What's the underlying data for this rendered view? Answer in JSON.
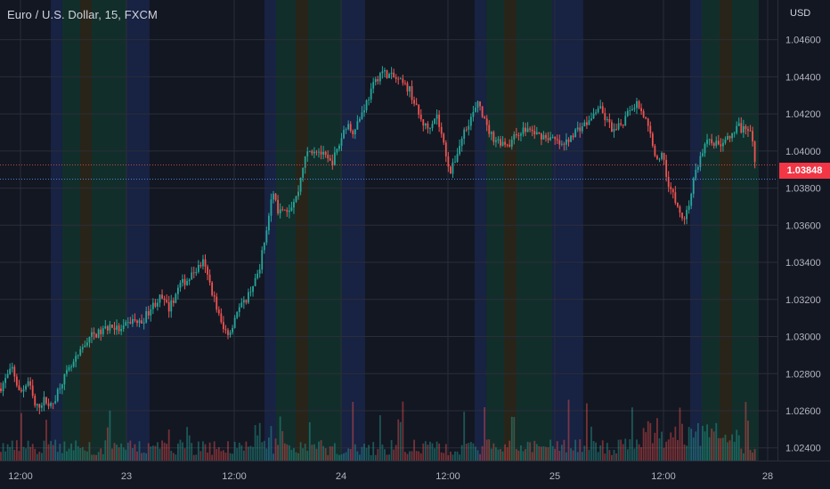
{
  "header": {
    "title": "Euro / U.S. Dollar, 15, FXCM",
    "currency": "USD"
  },
  "last_price_label": "1.03848",
  "colors": {
    "background": "#131722",
    "up": "#26a69a",
    "down": "#ef5350",
    "session_blue": "#1a2548",
    "session_green": "#13332d",
    "session_orange": "#2e2718",
    "price_tag": "#f23645"
  },
  "chart_data": {
    "type": "candlestick",
    "symbol": "Euro / U.S. Dollar",
    "interval": "15",
    "source": "FXCM",
    "y_tick_labels": [
      "1.02400",
      "1.02600",
      "1.02800",
      "1.03000",
      "1.03200",
      "1.03400",
      "1.03600",
      "1.03800",
      "1.04000",
      "1.04200",
      "1.04400",
      "1.04600"
    ],
    "ylim": [
      1.0237,
      1.0467
    ],
    "x_tick_labels": [
      "12:00",
      "23",
      "12:00",
      "24",
      "12:00",
      "25",
      "12:00",
      "28"
    ],
    "last_price": 1.03848,
    "reference_price": 1.03925,
    "grid": true,
    "close_path": [
      [
        0,
        1.0272
      ],
      [
        14,
        1.0283
      ],
      [
        22,
        1.0269
      ],
      [
        32,
        1.0276
      ],
      [
        40,
        1.0261
      ],
      [
        50,
        1.0266
      ],
      [
        58,
        1.0262
      ],
      [
        68,
        1.0275
      ],
      [
        78,
        1.0282
      ],
      [
        90,
        1.0291
      ],
      [
        100,
        1.03
      ],
      [
        112,
        1.0302
      ],
      [
        124,
        1.0306
      ],
      [
        136,
        1.0303
      ],
      [
        148,
        1.0309
      ],
      [
        158,
        1.0307
      ],
      [
        170,
        1.0316
      ],
      [
        180,
        1.0321
      ],
      [
        190,
        1.0315
      ],
      [
        202,
        1.0328
      ],
      [
        212,
        1.0331
      ],
      [
        220,
        1.0336
      ],
      [
        228,
        1.034
      ],
      [
        234,
        1.0331
      ],
      [
        242,
        1.0318
      ],
      [
        250,
        1.0304
      ],
      [
        258,
        1.0302
      ],
      [
        266,
        1.0314
      ],
      [
        274,
        1.0318
      ],
      [
        282,
        1.0326
      ],
      [
        290,
        1.0334
      ],
      [
        298,
        1.0354
      ],
      [
        306,
        1.0378
      ],
      [
        312,
        1.0368
      ],
      [
        318,
        1.0366
      ],
      [
        326,
        1.037
      ],
      [
        334,
        1.0376
      ],
      [
        340,
        1.0392
      ],
      [
        346,
        1.04
      ],
      [
        356,
        1.0401
      ],
      [
        364,
        1.0397
      ],
      [
        372,
        1.0393
      ],
      [
        380,
        1.0402
      ],
      [
        388,
        1.0414
      ],
      [
        396,
        1.0411
      ],
      [
        404,
        1.0418
      ],
      [
        412,
        1.0427
      ],
      [
        420,
        1.0436
      ],
      [
        428,
        1.0443
      ],
      [
        436,
        1.0441
      ],
      [
        444,
        1.0439
      ],
      [
        452,
        1.0436
      ],
      [
        460,
        1.0433
      ],
      [
        466,
        1.0425
      ],
      [
        472,
        1.0417
      ],
      [
        480,
        1.0412
      ],
      [
        490,
        1.042
      ],
      [
        498,
        1.0404
      ],
      [
        506,
        1.0388
      ],
      [
        514,
        1.04
      ],
      [
        522,
        1.0412
      ],
      [
        530,
        1.0419
      ],
      [
        538,
        1.0426
      ],
      [
        546,
        1.0413
      ],
      [
        554,
        1.0407
      ],
      [
        562,
        1.0405
      ],
      [
        572,
        1.0404
      ],
      [
        582,
        1.041
      ],
      [
        592,
        1.0412
      ],
      [
        602,
        1.0409
      ],
      [
        612,
        1.0408
      ],
      [
        622,
        1.0406
      ],
      [
        632,
        1.0402
      ],
      [
        642,
        1.0409
      ],
      [
        652,
        1.0413
      ],
      [
        662,
        1.0416
      ],
      [
        672,
        1.0424
      ],
      [
        680,
        1.0417
      ],
      [
        690,
        1.041
      ],
      [
        700,
        1.0416
      ],
      [
        708,
        1.0423
      ],
      [
        716,
        1.0426
      ],
      [
        724,
        1.0418
      ],
      [
        732,
        1.0406
      ],
      [
        738,
        1.0394
      ],
      [
        744,
        1.04
      ],
      [
        750,
        1.0383
      ],
      [
        756,
        1.0376
      ],
      [
        762,
        1.0368
      ],
      [
        768,
        1.0363
      ],
      [
        774,
        1.0372
      ],
      [
        780,
        1.0387
      ],
      [
        788,
        1.0399
      ],
      [
        796,
        1.0407
      ],
      [
        806,
        1.0403
      ],
      [
        814,
        1.0405
      ],
      [
        822,
        1.0408
      ],
      [
        830,
        1.0413
      ],
      [
        838,
        1.041
      ],
      [
        844,
        1.0409
      ],
      [
        850,
        1.03848
      ]
    ]
  }
}
